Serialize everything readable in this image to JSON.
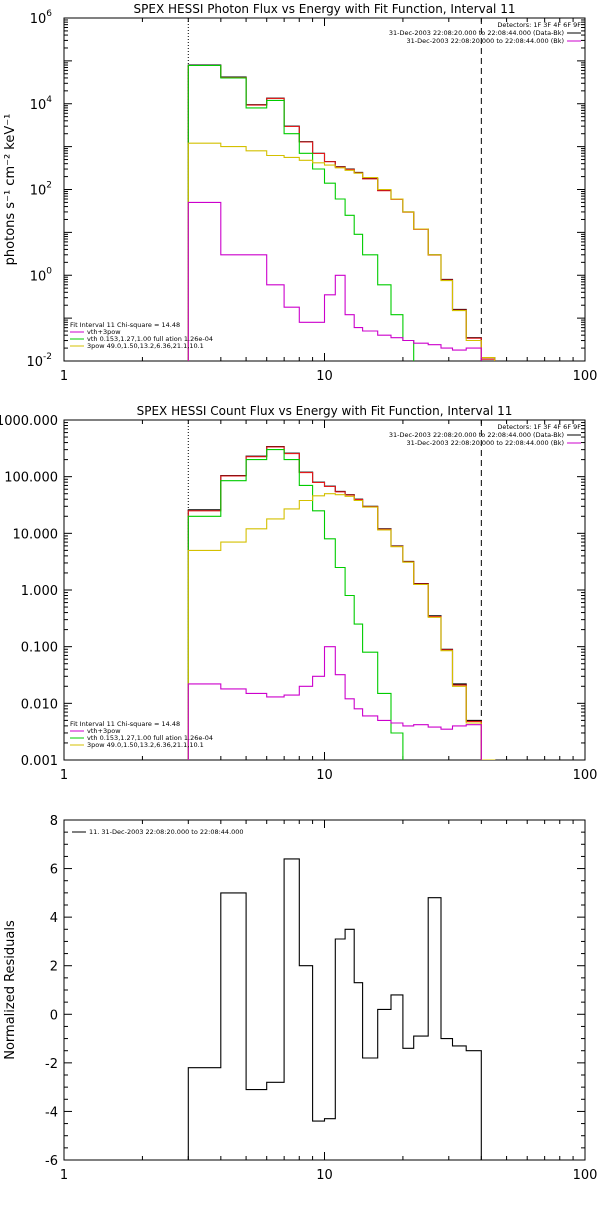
{
  "chart_data": [
    {
      "id": "photon",
      "type": "line",
      "title": "SPEX HESSI Photon Flux vs Energy with Fit Function, Interval 11",
      "xlabel": "",
      "ylabel": "photons s⁻¹ cm⁻² keV⁻¹",
      "xscale": "log",
      "yscale": "log",
      "xlim": [
        1,
        100
      ],
      "ylim": [
        0.01,
        1000000
      ],
      "x_ticks": [
        1,
        10,
        100
      ],
      "x_tick_labels": [
        "1",
        "10",
        "100"
      ],
      "y_ticks": [
        0.01,
        1,
        100,
        10000,
        1000000
      ],
      "y_tick_labels": [
        {
          "base": "10",
          "exp": "-2"
        },
        {
          "base": "10",
          "exp": "0"
        },
        {
          "base": "10",
          "exp": "2"
        },
        {
          "base": "10",
          "exp": "4"
        },
        {
          "base": "10",
          "exp": "6"
        }
      ],
      "vlines": [
        {
          "x": 3,
          "style": "dotted"
        },
        {
          "x": 40,
          "style": "dashed"
        }
      ],
      "edges": [
        3,
        4,
        5,
        6,
        7,
        8,
        9,
        10,
        11,
        12,
        13,
        14,
        16,
        18,
        20,
        22,
        25,
        28,
        31,
        35,
        40,
        45
      ],
      "series": [
        {
          "name": "",
          "role": "data",
          "color": "#000000",
          "values": [
            80000,
            42000,
            9500,
            13500,
            3000,
            1300,
            700,
            450,
            340,
            300,
            250,
            180,
            95,
            60,
            30,
            12,
            3.0,
            0.8,
            0.16,
            0.035,
            0.012
          ]
        },
        {
          "name": "",
          "role": "background",
          "color": "#e31a1c",
          "values": [
            78000,
            41000,
            9300,
            13300,
            2950,
            1280,
            690,
            445,
            335,
            295,
            245,
            178,
            94,
            59,
            29.5,
            11.8,
            2.95,
            0.78,
            0.155,
            0.034,
            0.011
          ]
        },
        {
          "name": "",
          "role": "thermal",
          "color": "#00cc00",
          "values": [
            78000,
            40000,
            8000,
            12000,
            2000,
            700,
            300,
            140,
            60,
            25,
            9,
            3,
            0.6,
            0.12,
            0.03,
            0.005,
            null,
            null,
            null,
            null,
            null
          ]
        },
        {
          "name": "",
          "role": "power-law",
          "color": "#d4c000",
          "values": [
            1200,
            1000,
            800,
            620,
            560,
            480,
            420,
            370,
            320,
            280,
            240,
            190,
            100,
            60,
            30,
            12,
            3,
            0.75,
            0.15,
            0.03,
            0.012
          ]
        },
        {
          "name": "",
          "role": "line-component",
          "color": "#cc00cc",
          "values": [
            50,
            3,
            3,
            0.6,
            0.18,
            0.08,
            0.08,
            0.35,
            1.0,
            0.12,
            0.06,
            0.05,
            0.04,
            0.035,
            0.03,
            0.026,
            0.024,
            0.02,
            0.018,
            0.02,
            null
          ]
        }
      ],
      "legend_top_right": {
        "header": "Detectors: 1F 3F 4F 6F 9F",
        "entries": [
          {
            "text": "31-Dec-2003 22:08:20.000 to 22:08:44.000 (Data-Bk)",
            "color": "#000000"
          },
          {
            "text": "31-Dec-2003 22:08:20.000 to 22:08:44.000 (Bk)",
            "color": "#cc00cc"
          }
        ]
      },
      "legend_bottom_left": {
        "header": "Fit Interval 11   Chi-square = 14.48",
        "entries": [
          {
            "text": "vth+3pow",
            "color": "#cc00cc"
          },
          {
            "text": "vth 0.153,1.27,1.00  full ation 1.26e-04",
            "color": "#00cc00"
          },
          {
            "text": "3pow 49.0,1.50,13.2,6.36,21.1,10.1",
            "color": "#d4c000"
          }
        ]
      }
    },
    {
      "id": "count",
      "type": "line",
      "title": "SPEX HESSI Count Flux vs Energy with Fit Function, Interval 11",
      "xlabel": "",
      "ylabel": "",
      "xscale": "log",
      "yscale": "log",
      "xlim": [
        1,
        100
      ],
      "ylim": [
        0.001,
        1000
      ],
      "x_ticks": [
        1,
        10,
        100
      ],
      "x_tick_labels": [
        "1",
        "10",
        "100"
      ],
      "y_ticks": [
        0.001,
        0.01,
        0.1,
        1,
        10,
        100,
        1000
      ],
      "y_tick_labels": [
        "0.001",
        "0.010",
        "0.100",
        "1.000",
        "10.000",
        "100.000",
        "1000.000"
      ],
      "vlines": [
        {
          "x": 3,
          "style": "dotted"
        },
        {
          "x": 40,
          "style": "dashed"
        }
      ],
      "edges": [
        3,
        4,
        5,
        6,
        7,
        8,
        9,
        10,
        11,
        12,
        13,
        14,
        16,
        18,
        20,
        22,
        25,
        28,
        31,
        35,
        40,
        45
      ],
      "series": [
        {
          "name": "",
          "role": "data",
          "color": "#000000",
          "values": [
            26,
            105,
            230,
            340,
            260,
            120,
            80,
            68,
            55,
            48,
            40,
            30,
            12,
            6,
            3.2,
            1.3,
            0.35,
            0.09,
            0.022,
            0.005,
            0.001
          ]
        },
        {
          "name": "",
          "role": "background",
          "color": "#e31a1c",
          "values": [
            25,
            103,
            225,
            335,
            255,
            118,
            79,
            67,
            54,
            47.5,
            39.5,
            29.5,
            11.8,
            5.9,
            3.15,
            1.28,
            0.34,
            0.088,
            0.021,
            0.0048,
            0.001
          ]
        },
        {
          "name": "",
          "role": "thermal",
          "color": "#00cc00",
          "values": [
            20,
            85,
            200,
            300,
            200,
            70,
            25,
            8,
            2.5,
            0.8,
            0.25,
            0.08,
            0.015,
            0.003,
            0.0006,
            null,
            null,
            null,
            null,
            null,
            null
          ]
        },
        {
          "name": "",
          "role": "power-law",
          "color": "#d4c000",
          "values": [
            5,
            7,
            12,
            18,
            27,
            38,
            46,
            50,
            48,
            45,
            38,
            29,
            11.5,
            5.8,
            3.1,
            1.25,
            0.33,
            0.085,
            0.02,
            0.0045,
            0.001
          ]
        },
        {
          "name": "",
          "role": "line-component",
          "color": "#cc00cc",
          "values": [
            0.022,
            0.018,
            0.015,
            0.013,
            0.014,
            0.02,
            0.03,
            0.1,
            0.032,
            0.012,
            0.008,
            0.006,
            0.005,
            0.0045,
            0.004,
            0.0042,
            0.0038,
            0.0035,
            0.004,
            0.0042,
            null
          ]
        }
      ],
      "legend_top_right": {
        "header": "Detectors: 1F 3F 4F 6F 9F",
        "entries": [
          {
            "text": "31-Dec-2003 22:08:20.000 to 22:08:44.000 (Data-Bk)",
            "color": "#000000"
          },
          {
            "text": "31-Dec-2003 22:08:20.000 to 22:08:44.000 (Bk)",
            "color": "#cc00cc"
          }
        ]
      },
      "legend_bottom_left": {
        "header": "Fit Interval 11   Chi-square = 14.48",
        "entries": [
          {
            "text": "vth+3pow",
            "color": "#cc00cc"
          },
          {
            "text": "vth 0.153,1.27,1.00  full ation 1.26e-04",
            "color": "#00cc00"
          },
          {
            "text": "3pow 49.0,1.50,13.2,6.36,21.1,10.1",
            "color": "#d4c000"
          }
        ]
      }
    },
    {
      "id": "residuals",
      "type": "line",
      "title": "",
      "xlabel": "",
      "ylabel": "Normalized Residuals",
      "xscale": "log",
      "yscale": "linear",
      "xlim": [
        1,
        100
      ],
      "ylim": [
        -6,
        8
      ],
      "x_ticks": [
        1,
        10,
        100
      ],
      "x_tick_labels": [
        "1",
        "10",
        "100"
      ],
      "y_ticks": [
        -6,
        -4,
        -2,
        0,
        2,
        4,
        6,
        8
      ],
      "y_tick_labels": [
        "-6",
        "-4",
        "-2",
        "0",
        "2",
        "4",
        "6",
        "8"
      ],
      "edges": [
        3,
        4,
        5,
        6,
        7,
        8,
        9,
        10,
        11,
        12,
        13,
        14,
        16,
        18,
        20,
        22,
        25,
        28,
        31,
        35,
        40
      ],
      "series": [
        {
          "name": "",
          "role": "residuals",
          "color": "#000000",
          "values": [
            -2.2,
            5.0,
            -3.1,
            -2.8,
            6.4,
            2.0,
            -4.4,
            -4.3,
            3.1,
            3.5,
            1.3,
            -1.8,
            0.2,
            0.8,
            -1.4,
            -0.9,
            4.8,
            -1.0,
            -1.3,
            -1.5
          ]
        }
      ],
      "legend_top_left": {
        "entries": [
          {
            "text": "11. 31-Dec-2003 22:08:20.000 to 22:08:44.000",
            "color": "#000000"
          }
        ]
      }
    }
  ]
}
